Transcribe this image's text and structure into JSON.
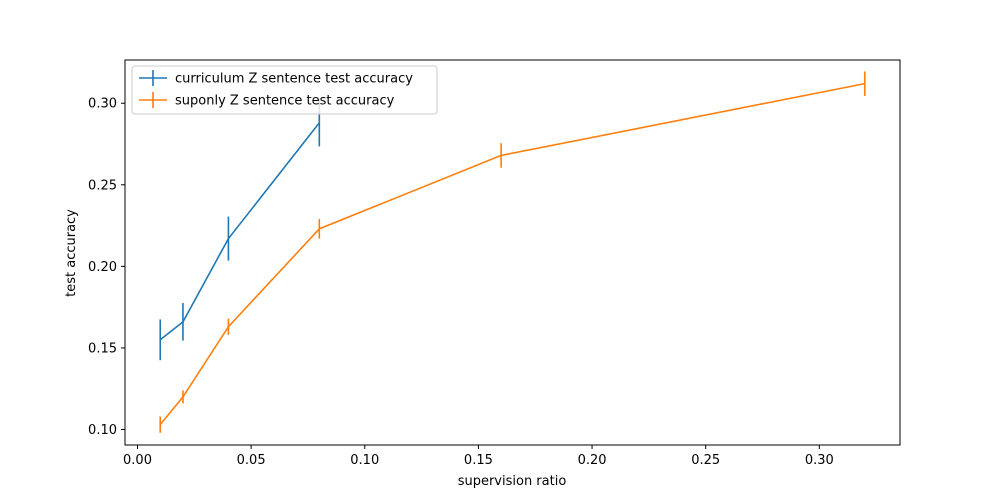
{
  "chart_data": {
    "type": "line",
    "title": "",
    "xlabel": "supervision ratio",
    "ylabel": "test accuracy",
    "xlim": [
      -0.0055,
      0.3355
    ],
    "ylim": [
      0.0905,
      0.3265
    ],
    "xticks": [
      0.0,
      0.05,
      0.1,
      0.15,
      0.2,
      0.25,
      0.3
    ],
    "xtick_labels": [
      "0.00",
      "0.05",
      "0.10",
      "0.15",
      "0.20",
      "0.25",
      "0.30"
    ],
    "yticks": [
      0.1,
      0.15,
      0.2,
      0.25,
      0.3
    ],
    "ytick_labels": [
      "0.10",
      "0.15",
      "0.20",
      "0.25",
      "0.30"
    ],
    "grid": false,
    "legend_position": "top-left",
    "series": [
      {
        "name": "curriculum Z sentence test accuracy",
        "color": "#1f77b4",
        "x": [
          0.01,
          0.02,
          0.04,
          0.08
        ],
        "y": [
          0.155,
          0.166,
          0.217,
          0.288
        ],
        "yerr": [
          0.0125,
          0.0115,
          0.0135,
          0.0145
        ]
      },
      {
        "name": "suponly Z sentence test accuracy",
        "color": "#ff7f0e",
        "x": [
          0.01,
          0.02,
          0.04,
          0.08,
          0.16,
          0.32
        ],
        "y": [
          0.103,
          0.12,
          0.163,
          0.223,
          0.268,
          0.312
        ],
        "yerr": [
          0.005,
          0.004,
          0.005,
          0.006,
          0.0075,
          0.0075
        ]
      }
    ]
  }
}
